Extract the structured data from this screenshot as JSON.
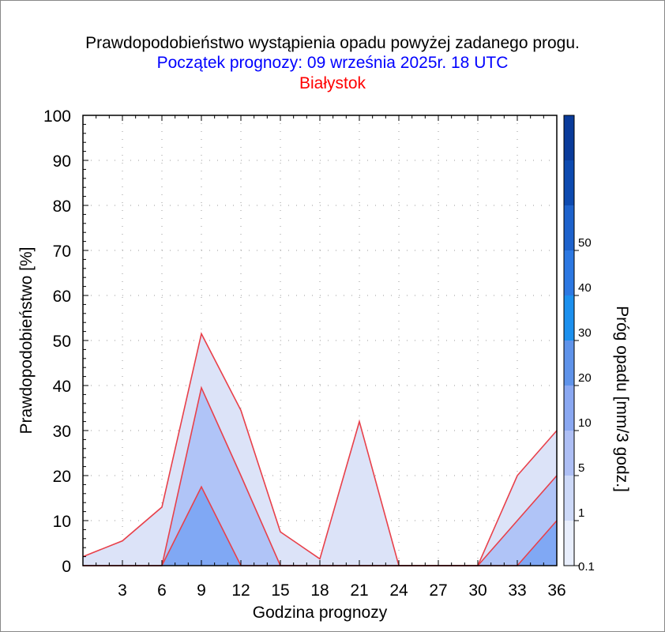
{
  "header": {
    "title": "Prawdopodobieństwo wystąpienia opadu powyżej zadanego progu.",
    "subtitle": "Początek prognozy: 09 września 2025r. 18 UTC",
    "location": "Białystok"
  },
  "colors": {
    "title": "#000000",
    "subtitle": "#0000ff",
    "location": "#ff0000",
    "outline": "#e8404a"
  },
  "chart_data": {
    "type": "area",
    "xlabel": "Godzina prognozy",
    "ylabel": "Prawdopodobieństwo [%]",
    "colorbar_label": "Próg opadu [mm/3 godz.]",
    "xlim": [
      0,
      36
    ],
    "ylim": [
      0,
      100
    ],
    "x_ticks": [
      3,
      6,
      9,
      12,
      15,
      18,
      21,
      24,
      27,
      30,
      33,
      36
    ],
    "y_ticks": [
      0,
      10,
      20,
      30,
      40,
      50,
      60,
      70,
      80,
      90,
      100
    ],
    "x": [
      0,
      3,
      6,
      9,
      12,
      15,
      18,
      21,
      24,
      27,
      30,
      33,
      36
    ],
    "series": [
      {
        "name": "0.1",
        "color": "#dce3f8",
        "values": [
          2,
          5.5,
          13,
          51.5,
          34.5,
          7.5,
          1.5,
          32,
          0,
          0,
          0,
          20,
          30
        ]
      },
      {
        "name": "1",
        "color": "#b0c4f7",
        "values": [
          0,
          0,
          0,
          39.5,
          20,
          0,
          0,
          0,
          0,
          0,
          0,
          10,
          20
        ]
      },
      {
        "name": "5",
        "color": "#80a8f4",
        "values": [
          0,
          0,
          0,
          17.5,
          0,
          0,
          0,
          0,
          0,
          0,
          0,
          0,
          10
        ]
      }
    ],
    "colorbar": {
      "thresholds": [
        0.1,
        1,
        5,
        10,
        20,
        30,
        40,
        50
      ],
      "colors": [
        "#e8eefc",
        "#cdd9f8",
        "#aebff5",
        "#8aa8f2",
        "#5f93ea",
        "#1c90ee",
        "#2c78e2",
        "#1d62cc",
        "#0d4ab0",
        "#0a3b9a"
      ]
    }
  }
}
